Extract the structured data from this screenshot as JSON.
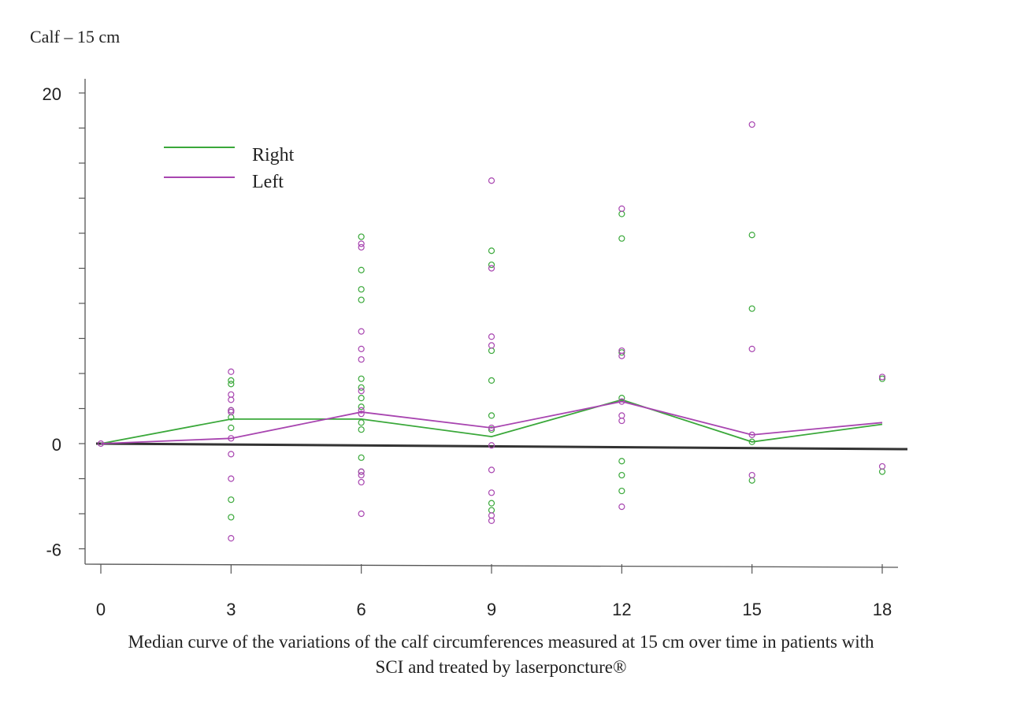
{
  "chart_data": {
    "type": "line",
    "title": "Calf – 15 cm",
    "caption": [
      "Median curve of the variations of the calf circumferences measured at 15 cm over time in patients with",
      "SCI and treated by laserponcture®"
    ],
    "xlabel": "",
    "ylabel": "",
    "x_ticks": [
      0,
      3,
      6,
      9,
      12,
      15,
      18
    ],
    "y_tick_labels": [
      -6,
      0,
      20
    ],
    "xlim": [
      0,
      18
    ],
    "ylim": [
      -6,
      20
    ],
    "legend_position": "top-left",
    "grid": false,
    "series": [
      {
        "name": "Right",
        "color": "#3aa83a",
        "x": [
          0,
          3,
          6,
          9,
          12,
          15,
          18
        ],
        "median": [
          0,
          1.4,
          1.4,
          0.4,
          2.5,
          0.1,
          1.1
        ],
        "points": [
          [
            3,
            3.6
          ],
          [
            3,
            3.4
          ],
          [
            3,
            1.9
          ],
          [
            3,
            1.5
          ],
          [
            3,
            0.9
          ],
          [
            3,
            -3.2
          ],
          [
            3,
            -4.2
          ],
          [
            6,
            11.8
          ],
          [
            6,
            9.9
          ],
          [
            6,
            8.8
          ],
          [
            6,
            8.2
          ],
          [
            6,
            3.7
          ],
          [
            6,
            3.2
          ],
          [
            6,
            2.6
          ],
          [
            6,
            2.1
          ],
          [
            6,
            1.2
          ],
          [
            6,
            0.8
          ],
          [
            6,
            -0.8
          ],
          [
            6,
            -1.6
          ],
          [
            9,
            11.0
          ],
          [
            9,
            10.2
          ],
          [
            9,
            5.3
          ],
          [
            9,
            3.6
          ],
          [
            9,
            1.6
          ],
          [
            9,
            0.8
          ],
          [
            9,
            -3.4
          ],
          [
            9,
            -3.8
          ],
          [
            12,
            13.1
          ],
          [
            12,
            11.7
          ],
          [
            12,
            5.2
          ],
          [
            12,
            2.6
          ],
          [
            12,
            -1.0
          ],
          [
            12,
            -1.8
          ],
          [
            12,
            -2.7
          ],
          [
            15,
            11.9
          ],
          [
            15,
            7.7
          ],
          [
            15,
            0.1
          ],
          [
            15,
            -2.1
          ],
          [
            18,
            3.7
          ],
          [
            18,
            -1.6
          ]
        ]
      },
      {
        "name": "Left",
        "color": "#a845b0",
        "x": [
          0,
          3,
          6,
          9,
          12,
          15,
          18
        ],
        "median": [
          0,
          0.3,
          1.8,
          0.9,
          2.4,
          0.5,
          1.2
        ],
        "points": [
          [
            0,
            0
          ],
          [
            3,
            4.1
          ],
          [
            3,
            2.8
          ],
          [
            3,
            2.5
          ],
          [
            3,
            1.9
          ],
          [
            3,
            1.8
          ],
          [
            3,
            0.3
          ],
          [
            3,
            -0.6
          ],
          [
            3,
            -2.0
          ],
          [
            3,
            -5.4
          ],
          [
            6,
            11.4
          ],
          [
            6,
            11.2
          ],
          [
            6,
            6.4
          ],
          [
            6,
            5.4
          ],
          [
            6,
            4.8
          ],
          [
            6,
            3.0
          ],
          [
            6,
            1.9
          ],
          [
            6,
            1.7
          ],
          [
            6,
            -1.6
          ],
          [
            6,
            -1.8
          ],
          [
            6,
            -2.2
          ],
          [
            6,
            -4.0
          ],
          [
            9,
            15.0
          ],
          [
            9,
            10.0
          ],
          [
            9,
            6.1
          ],
          [
            9,
            5.6
          ],
          [
            9,
            0.9
          ],
          [
            9,
            -0.1
          ],
          [
            9,
            -1.5
          ],
          [
            9,
            -2.8
          ],
          [
            9,
            -4.1
          ],
          [
            9,
            -4.4
          ],
          [
            12,
            13.4
          ],
          [
            12,
            5.3
          ],
          [
            12,
            5.0
          ],
          [
            12,
            2.4
          ],
          [
            12,
            1.6
          ],
          [
            12,
            1.3
          ],
          [
            12,
            -3.6
          ],
          [
            15,
            18.2
          ],
          [
            15,
            5.4
          ],
          [
            15,
            0.5
          ],
          [
            15,
            -1.8
          ],
          [
            18,
            3.8
          ],
          [
            18,
            -1.3
          ]
        ]
      }
    ]
  }
}
